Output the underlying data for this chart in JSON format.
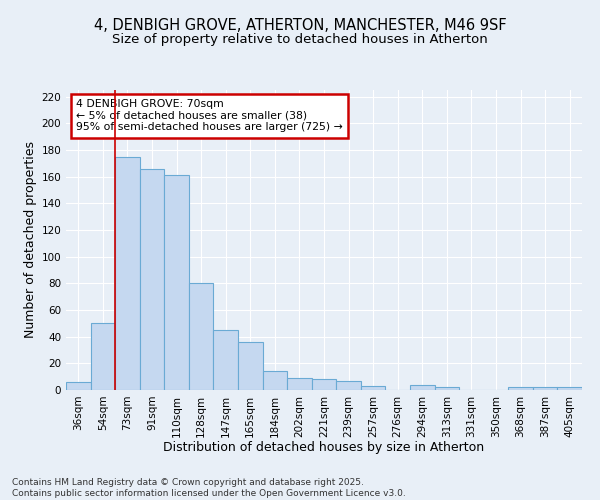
{
  "title1": "4, DENBIGH GROVE, ATHERTON, MANCHESTER, M46 9SF",
  "title2": "Size of property relative to detached houses in Atherton",
  "xlabel": "Distribution of detached houses by size in Atherton",
  "ylabel": "Number of detached properties",
  "footer": "Contains HM Land Registry data © Crown copyright and database right 2025.\nContains public sector information licensed under the Open Government Licence v3.0.",
  "bins": [
    "36sqm",
    "54sqm",
    "73sqm",
    "91sqm",
    "110sqm",
    "128sqm",
    "147sqm",
    "165sqm",
    "184sqm",
    "202sqm",
    "221sqm",
    "239sqm",
    "257sqm",
    "276sqm",
    "294sqm",
    "313sqm",
    "331sqm",
    "350sqm",
    "368sqm",
    "387sqm",
    "405sqm"
  ],
  "values": [
    6,
    50,
    175,
    166,
    161,
    80,
    45,
    36,
    14,
    9,
    8,
    7,
    3,
    0,
    4,
    2,
    0,
    0,
    2,
    2,
    2
  ],
  "bar_color": "#c5d8f0",
  "bar_edge_color": "#6aaad4",
  "red_line_x": 2,
  "annotation_text": "4 DENBIGH GROVE: 70sqm\n← 5% of detached houses are smaller (38)\n95% of semi-detached houses are larger (725) →",
  "annotation_box_color": "#ffffff",
  "annotation_box_edge": "#cc0000",
  "ylim": [
    0,
    225
  ],
  "yticks": [
    0,
    20,
    40,
    60,
    80,
    100,
    120,
    140,
    160,
    180,
    200,
    220
  ],
  "bg_color": "#e8eff7",
  "grid_color": "#ffffff",
  "title_fontsize": 10.5,
  "subtitle_fontsize": 9.5,
  "tick_fontsize": 7.5,
  "label_fontsize": 9,
  "footer_fontsize": 6.5
}
